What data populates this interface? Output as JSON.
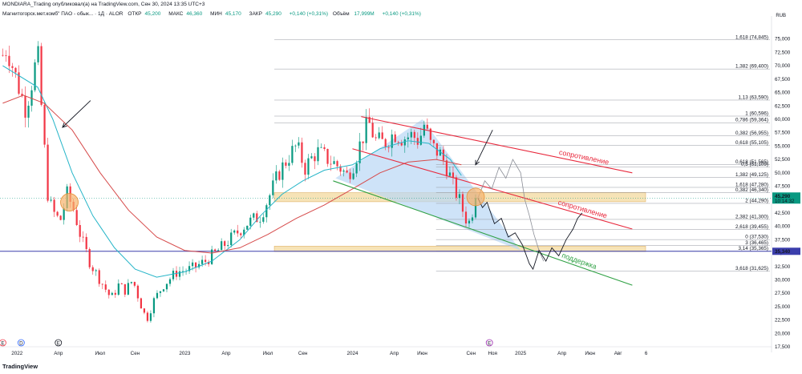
{
  "header": {
    "title": "MONDIARA_Trading опубликовал(а) на TradingView.com, Сен 30, 2024 13:35 UTC+3",
    "symbol": "Магнитогорск.мет.комб\" ПАО - обык... · 1Д · ALOR",
    "open_label": "ОТКР",
    "open": "45,200",
    "high_label": "МАКС",
    "high": "46,360",
    "low_label": "МИН",
    "low": "45,170",
    "close_label": "ЗАКР",
    "close": "45,290",
    "change": "+0,140 (+0,31%)",
    "volume_label": "Объём",
    "volume": "17,999M",
    "volume_change": "+0,140 (+0,31%)"
  },
  "currency": "RUB",
  "branding": "TradingView",
  "colors": {
    "up": "#089981",
    "down": "#f23645",
    "price_line": "#089981",
    "level_line": "#3b3eac",
    "resistance": "#e8283c",
    "support": "#2ea043",
    "zone": "#f5deaa",
    "triangle": "#b9d7f5",
    "ma_fast": "#26b5c8",
    "ma_slow": "#d64a4a"
  },
  "chart_data": {
    "type": "candlestick",
    "title": "",
    "xlabel": "",
    "ylabel": "",
    "x_range": [
      "2021-11-25",
      "2026-07-01"
    ],
    "ylim": [
      17500,
      79000
    ],
    "x_ticks": [
      {
        "label": "2022",
        "date": "2022-01-01"
      },
      {
        "label": "Апр",
        "date": "2022-04-01"
      },
      {
        "label": "Июл",
        "date": "2022-07-01"
      },
      {
        "label": "Сен",
        "date": "2022-09-15"
      },
      {
        "label": "2023",
        "date": "2023-01-01"
      },
      {
        "label": "Апр",
        "date": "2023-04-01"
      },
      {
        "label": "Июл",
        "date": "2023-07-01"
      },
      {
        "label": "Сен",
        "date": "2023-09-15"
      },
      {
        "label": "2024",
        "date": "2024-01-01"
      },
      {
        "label": "Апр",
        "date": "2024-04-01"
      },
      {
        "label": "Июн",
        "date": "2024-06-01"
      },
      {
        "label": "Сен",
        "date": "2024-09-15"
      },
      {
        "label": "Ноя",
        "date": "2024-11-01"
      },
      {
        "label": "2025",
        "date": "2025-01-01"
      },
      {
        "label": "Апр",
        "date": "2025-04-01"
      },
      {
        "label": "Июн",
        "date": "2025-06-01"
      },
      {
        "label": "Авг",
        "date": "2025-08-01"
      },
      {
        "label": "6",
        "date": "2025-10-01"
      }
    ],
    "y_ticks": [
      75000,
      72500,
      70000,
      67500,
      65000,
      62500,
      60000,
      57500,
      55000,
      52500,
      50000,
      47500,
      45000,
      42500,
      40000,
      37500,
      35000,
      32500,
      30000,
      27500,
      25000,
      22500,
      20000,
      17500
    ],
    "price_anchors": [
      [
        "2021-12-01",
        72000
      ],
      [
        "2021-12-10",
        73500
      ],
      [
        "2022-01-05",
        66000
      ],
      [
        "2022-01-20",
        62000
      ],
      [
        "2022-02-05",
        68000
      ],
      [
        "2022-02-15",
        72500
      ],
      [
        "2022-02-25",
        60000
      ],
      [
        "2022-03-10",
        45000
      ],
      [
        "2022-03-25",
        42000
      ],
      [
        "2022-04-05",
        41000
      ],
      [
        "2022-04-20",
        46000
      ],
      [
        "2022-05-05",
        43000
      ],
      [
        "2022-05-20",
        38000
      ],
      [
        "2022-06-10",
        33000
      ],
      [
        "2022-07-01",
        30000
      ],
      [
        "2022-07-25",
        26500
      ],
      [
        "2022-08-10",
        29000
      ],
      [
        "2022-08-25",
        28000
      ],
      [
        "2022-09-10",
        30000
      ],
      [
        "2022-09-25",
        26000
      ],
      [
        "2022-10-10",
        22500
      ],
      [
        "2022-10-25",
        26000
      ],
      [
        "2022-11-15",
        29000
      ],
      [
        "2022-12-15",
        31500
      ],
      [
        "2023-01-15",
        32000
      ],
      [
        "2023-02-15",
        33500
      ],
      [
        "2023-03-15",
        35500
      ],
      [
        "2023-04-15",
        38000
      ],
      [
        "2023-05-15",
        40500
      ],
      [
        "2023-06-15",
        42000
      ],
      [
        "2023-07-01",
        45000
      ],
      [
        "2023-07-25",
        50000
      ],
      [
        "2023-08-15",
        53000
      ],
      [
        "2023-09-01",
        55000
      ],
      [
        "2023-09-20",
        51000
      ],
      [
        "2023-10-15",
        54000
      ],
      [
        "2023-11-10",
        52500
      ],
      [
        "2023-12-05",
        51000
      ],
      [
        "2023-12-20",
        49500
      ],
      [
        "2024-01-05",
        52000
      ],
      [
        "2024-01-20",
        56000
      ],
      [
        "2024-02-05",
        59500
      ],
      [
        "2024-02-20",
        56000
      ],
      [
        "2024-03-10",
        55500
      ],
      [
        "2024-04-01",
        57500
      ],
      [
        "2024-04-20",
        56500
      ],
      [
        "2024-05-10",
        57000
      ],
      [
        "2024-05-25",
        56000
      ],
      [
        "2024-06-05",
        59000
      ],
      [
        "2024-06-20",
        55000
      ],
      [
        "2024-07-10",
        53500
      ],
      [
        "2024-07-25",
        51000
      ],
      [
        "2024-08-05",
        48000
      ],
      [
        "2024-08-20",
        45000
      ],
      [
        "2024-09-01",
        42000
      ],
      [
        "2024-09-10",
        40500
      ],
      [
        "2024-09-20",
        43500
      ],
      [
        "2024-09-30",
        45290
      ]
    ],
    "price_series": {
      "start": "2021-12-01",
      "end": "2024-09-30",
      "step_days": 7,
      "last_close": 45290,
      "ohlc": [
        {
          "date": "2024-09-16",
          "open": 44990,
          "high": 46280,
          "low": 44530,
          "close": 45150
        },
        {
          "date": "2024-09-23",
          "open": 45150,
          "high": 46360,
          "low": 44800,
          "close": 45290
        }
      ]
    },
    "ma_fast": [
      [
        "2021-12-01",
        70000
      ],
      [
        "2022-02-15",
        66000
      ],
      [
        "2022-03-20",
        60000
      ],
      [
        "2022-05-01",
        50000
      ],
      [
        "2022-06-15",
        42000
      ],
      [
        "2022-08-01",
        36000
      ],
      [
        "2022-09-15",
        32000
      ],
      [
        "2022-11-01",
        30500
      ],
      [
        "2023-01-01",
        31500
      ],
      [
        "2023-03-01",
        33500
      ],
      [
        "2023-05-01",
        37500
      ],
      [
        "2023-06-15",
        42000
      ],
      [
        "2023-08-01",
        46000
      ],
      [
        "2023-09-15",
        48500
      ],
      [
        "2023-11-01",
        50500
      ],
      [
        "2024-01-01",
        51500
      ],
      [
        "2024-03-01",
        54500
      ],
      [
        "2024-05-01",
        56000
      ],
      [
        "2024-06-15",
        55500
      ],
      [
        "2024-08-01",
        52500
      ],
      [
        "2024-08-25",
        49500
      ]
    ],
    "ma_slow": [
      [
        "2021-12-01",
        63000
      ],
      [
        "2022-01-15",
        64500
      ],
      [
        "2022-03-01",
        63000
      ],
      [
        "2022-05-01",
        58000
      ],
      [
        "2022-07-01",
        50000
      ],
      [
        "2022-09-01",
        43000
      ],
      [
        "2022-11-01",
        38000
      ],
      [
        "2023-01-01",
        35500
      ],
      [
        "2023-03-01",
        35000
      ],
      [
        "2023-05-01",
        36000
      ],
      [
        "2023-07-01",
        38500
      ],
      [
        "2023-09-01",
        41500
      ],
      [
        "2023-11-01",
        44000
      ],
      [
        "2024-01-01",
        47000
      ],
      [
        "2024-03-01",
        50000
      ],
      [
        "2024-05-01",
        52000
      ],
      [
        "2024-07-01",
        52500
      ],
      [
        "2024-08-25",
        51500
      ]
    ],
    "horizontal_level": {
      "value": 35340,
      "label": "35,340"
    },
    "current_price": {
      "value": 45290,
      "label": "45,290",
      "time": "10:14:32"
    },
    "fib_levels": [
      {
        "label": "1,618 (74,845)",
        "value": 74845,
        "from": "2023-07-15"
      },
      {
        "label": "1,382 (69,400)",
        "value": 69400,
        "from": "2023-07-15"
      },
      {
        "label": "1,13 (63,590)",
        "value": 63590,
        "from": "2023-07-15"
      },
      {
        "label": "1 (60,596)",
        "value": 60596,
        "from": "2023-07-15"
      },
      {
        "label": "0,786 (59,364)",
        "value": 59364,
        "from": "2023-07-15"
      },
      {
        "label": "0,382 (56,955)",
        "value": 56955,
        "from": "2024-07-01"
      },
      {
        "label": "0,618 (55,105)",
        "value": 55105,
        "from": "2024-07-01"
      },
      {
        "label": "0,618 (51,565)",
        "value": 51565,
        "from": "2024-07-01"
      },
      {
        "label": "0,5 (51,109)",
        "value": 51109,
        "from": "2024-07-01"
      },
      {
        "label": "1,382 (49,125)",
        "value": 49125,
        "from": "2024-07-01"
      },
      {
        "label": "1,618 (47,280)",
        "value": 47280,
        "from": "2024-07-01"
      },
      {
        "label": "0,382 (46,340)",
        "value": 46340,
        "from": "2024-07-01"
      },
      {
        "label": "2 (44,290)",
        "value": 44290,
        "from": "2024-07-01"
      },
      {
        "label": "2,382 (41,300)",
        "value": 41300,
        "from": "2024-07-01"
      },
      {
        "label": "2,618 (39,455)",
        "value": 39455,
        "from": "2024-07-01"
      },
      {
        "label": "0 (37,530)",
        "value": 37530,
        "from": "2024-07-01"
      },
      {
        "label": "3 (36,465)",
        "value": 36465,
        "from": "2024-07-01"
      },
      {
        "label": "3,14 (35,365)",
        "value": 35365,
        "from": "2024-07-01"
      },
      {
        "label": "3,618 (31,625)",
        "value": 31625,
        "from": "2024-07-01"
      }
    ],
    "zones": [
      {
        "from": "2023-07-15",
        "to": "2025-09-30",
        "low": 44600,
        "high": 46300
      },
      {
        "from": "2023-07-15",
        "to": "2025-09-30",
        "low": 35300,
        "high": 36300
      }
    ],
    "triangle": [
      [
        "2023-11-25",
        49000
      ],
      [
        "2024-06-01",
        60000
      ],
      [
        "2025-01-01",
        35500
      ]
    ],
    "trendlines": [
      {
        "role": "resistance",
        "label": "сопротивление",
        "points": [
          [
            "2024-01-20",
            60500
          ],
          [
            "2025-09-01",
            50000
          ]
        ]
      },
      {
        "role": "resistance",
        "label": "сопротивление",
        "points": [
          [
            "2024-01-01",
            54500
          ],
          [
            "2025-09-01",
            39500
          ]
        ]
      },
      {
        "role": "support",
        "label": "поддержка",
        "points": [
          [
            "2023-11-20",
            48500
          ],
          [
            "2025-09-01",
            29000
          ]
        ]
      }
    ],
    "projection_black": [
      [
        "2024-09-30",
        45290
      ],
      [
        "2024-10-10",
        43500
      ],
      [
        "2024-10-20",
        44500
      ],
      [
        "2024-11-05",
        40500
      ],
      [
        "2024-11-20",
        41500
      ],
      [
        "2024-12-05",
        38000
      ],
      [
        "2024-12-20",
        38800
      ],
      [
        "2025-01-05",
        36500
      ],
      [
        "2025-01-20",
        33000
      ],
      [
        "2025-01-28",
        32000
      ],
      [
        "2025-02-10",
        35500
      ],
      [
        "2025-02-25",
        33500
      ],
      [
        "2025-03-10",
        36000
      ],
      [
        "2025-03-25",
        34500
      ],
      [
        "2025-04-10",
        37500
      ],
      [
        "2025-04-25",
        39500
      ],
      [
        "2025-05-05",
        41500
      ],
      [
        "2025-05-15",
        42500
      ]
    ],
    "projection_gray": [
      [
        "2024-09-30",
        45290
      ],
      [
        "2024-10-15",
        48500
      ],
      [
        "2024-10-30",
        47000
      ],
      [
        "2024-11-15",
        51000
      ],
      [
        "2024-11-30",
        49000
      ],
      [
        "2024-12-15",
        52500
      ],
      [
        "2025-01-01",
        50000
      ],
      [
        "2025-01-10",
        45000
      ],
      [
        "2025-01-20",
        42000
      ],
      [
        "2025-01-30",
        38500
      ],
      [
        "2025-02-10",
        35500
      ],
      [
        "2025-02-20",
        33500
      ]
    ],
    "highlight_circles": [
      [
        "2022-04-25",
        44500
      ],
      [
        "2024-09-25",
        45500
      ]
    ],
    "arrows": [
      {
        "from": [
          "2022-06-10",
          63500
        ],
        "to": [
          "2022-04-10",
          58500
        ]
      },
      {
        "from": [
          "2024-11-01",
          58000
        ],
        "to": [
          "2024-09-25",
          51500
        ]
      }
    ],
    "event_markers": [
      {
        "label": "E",
        "date": "2021-12-01",
        "color": "#f23645"
      },
      {
        "label": "D",
        "date": "2022-01-10",
        "color": "#2962ff"
      },
      {
        "label": "E",
        "date": "2022-04-01",
        "color": "#131722"
      },
      {
        "label": "E",
        "date": "2024-10-25",
        "color": "#9c27b0"
      }
    ]
  }
}
